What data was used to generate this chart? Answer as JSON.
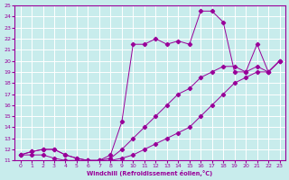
{
  "xlabel": "Windchill (Refroidissement éolien,°C)",
  "xlim": [
    -0.5,
    23.5
  ],
  "ylim": [
    11,
    25
  ],
  "xticks": [
    0,
    1,
    2,
    3,
    4,
    5,
    6,
    7,
    8,
    9,
    10,
    11,
    12,
    13,
    14,
    15,
    16,
    17,
    18,
    19,
    20,
    21,
    22,
    23
  ],
  "yticks": [
    11,
    12,
    13,
    14,
    15,
    16,
    17,
    18,
    19,
    20,
    21,
    22,
    23,
    24,
    25
  ],
  "bg_color": "#c8ecec",
  "line_color": "#990099",
  "grid_color": "#ffffff",
  "line1_x": [
    0,
    1,
    2,
    3,
    4,
    5,
    6,
    7,
    8,
    9,
    10,
    11,
    12,
    13,
    14,
    15,
    16,
    17,
    18,
    19,
    20,
    21,
    22,
    23
  ],
  "line1_y": [
    11.5,
    11.5,
    11.5,
    11.2,
    11.0,
    11.0,
    11.0,
    11.0,
    11.0,
    11.2,
    11.5,
    12.0,
    12.5,
    13.0,
    13.5,
    14.0,
    15.0,
    16.0,
    17.0,
    18.0,
    18.5,
    19.0,
    19.0,
    20.0
  ],
  "line2_x": [
    0,
    1,
    2,
    3,
    4,
    5,
    6,
    7,
    8,
    9,
    10,
    11,
    12,
    13,
    14,
    15,
    16,
    17,
    18,
    19,
    20,
    21,
    22,
    23
  ],
  "line2_y": [
    11.5,
    11.8,
    12.0,
    12.0,
    11.5,
    11.2,
    11.0,
    11.0,
    11.2,
    12.0,
    13.0,
    14.0,
    15.0,
    16.0,
    17.0,
    17.5,
    18.5,
    19.0,
    19.5,
    19.5,
    19.0,
    19.5,
    19.0,
    20.0
  ],
  "line3_x": [
    0,
    1,
    2,
    3,
    4,
    5,
    6,
    7,
    8,
    9,
    10,
    11,
    12,
    13,
    14,
    15,
    16,
    17,
    18,
    19,
    20,
    21,
    22,
    23
  ],
  "line3_y": [
    11.5,
    11.8,
    12.0,
    12.0,
    11.5,
    11.2,
    11.0,
    11.0,
    11.5,
    14.5,
    21.5,
    21.5,
    22.0,
    21.5,
    21.8,
    21.5,
    24.5,
    24.5,
    23.5,
    19.0,
    19.0,
    21.5,
    19.0,
    20.0
  ]
}
